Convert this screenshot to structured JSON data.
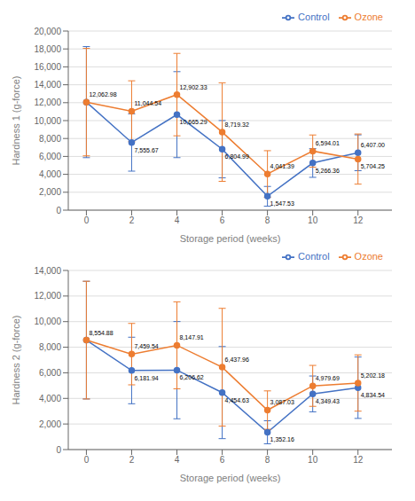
{
  "chart_data": [
    {
      "type": "line",
      "x": [
        0,
        2,
        4,
        6,
        8,
        10,
        12
      ],
      "xlim": [
        -0.8,
        13.5
      ],
      "xticks": [
        0,
        2,
        4,
        6,
        8,
        10,
        12
      ],
      "xlabel": "Storage period (weeks)",
      "ylabel": "Hardness 1 (g-force)",
      "ylim": [
        0,
        20000
      ],
      "yticks": [
        0,
        {
          "value": 2000,
          "label": "2,000"
        },
        {
          "value": 4000,
          "label": "4,000"
        },
        {
          "value": 6000,
          "label": "6,000"
        },
        {
          "value": 8000,
          "label": "8,000"
        },
        {
          "value": 10000,
          "label": "10,000"
        },
        {
          "value": 12000,
          "label": "12,000"
        },
        {
          "value": 14000,
          "label": "14,000"
        },
        {
          "value": 16000,
          "label": "16,000"
        },
        {
          "value": 18000,
          "label": "18,000"
        },
        {
          "value": 20000,
          "label": "20,000"
        }
      ],
      "grid": true,
      "legend": "upper right",
      "data_labels": true,
      "series": [
        {
          "name": "Control",
          "color": "#4472C4",
          "marker": "circle",
          "values": [
            12062.98,
            7555.67,
            10665.29,
            6804.99,
            1547.53,
            5266.36,
            6407.0
          ],
          "error": [
            6200,
            3200,
            4800,
            3200,
            1100,
            1600,
            2000
          ],
          "value_labels": [
            "12,062.98",
            "7,555.67",
            "10,665.29",
            "6,804.99",
            "1,547.53",
            "5,266.36",
            "6,407.00"
          ]
        },
        {
          "name": "Ozone",
          "color": "#ED7D31",
          "marker": "circle",
          "values": [
            12062.98,
            11044.54,
            12902.33,
            8719.32,
            4041.39,
            6594.01,
            5704.25
          ],
          "error": [
            6000,
            3400,
            4600,
            5500,
            2600,
            1800,
            2800
          ],
          "value_labels": [
            null,
            "11,044.54",
            "12,902.33",
            "8,719.32",
            "4,041.39",
            "6,594.01",
            "5,704.25"
          ]
        }
      ]
    },
    {
      "type": "line",
      "x": [
        0,
        2,
        4,
        6,
        8,
        10,
        12
      ],
      "xlim": [
        -0.8,
        13.5
      ],
      "xticks": [
        0,
        2,
        4,
        6,
        8,
        10,
        12
      ],
      "xlabel": "Storage period (weeks)",
      "ylabel": "Hardness 2 (g-force)",
      "ylim": [
        0,
        14000
      ],
      "yticks": [
        0,
        {
          "value": 2000,
          "label": "2,000"
        },
        {
          "value": 4000,
          "label": "4,000"
        },
        {
          "value": 6000,
          "label": "6,000"
        },
        {
          "value": 8000,
          "label": "8,000"
        },
        {
          "value": 10000,
          "label": "10,000"
        },
        {
          "value": 12000,
          "label": "12,000"
        },
        {
          "value": 14000,
          "label": "14,000"
        }
      ],
      "grid": true,
      "legend": "upper right",
      "data_labels": true,
      "series": [
        {
          "name": "Control",
          "color": "#4472C4",
          "marker": "circle",
          "values": [
            8554.88,
            6181.94,
            6206.62,
            4454.63,
            1352.16,
            4349.43,
            4834.54
          ],
          "error": [
            4600,
            2600,
            3800,
            3600,
            900,
            1400,
            2400
          ],
          "value_labels": [
            "8,554.88",
            "6,181.94",
            "6,206.62",
            "4,454.63",
            "1,352.16",
            "4,349.43",
            "4,834.54"
          ]
        },
        {
          "name": "Ozone",
          "color": "#ED7D31",
          "marker": "circle",
          "values": [
            8554.88,
            7459.54,
            8147.91,
            6437.96,
            3087.03,
            4979.69,
            5202.18
          ],
          "error": [
            4600,
            2400,
            3400,
            4600,
            1500,
            1600,
            2200
          ],
          "value_labels": [
            null,
            "7,459.54",
            "8,147.91",
            "6,437.96",
            "3,087.03",
            "4,979.69",
            "5,202.18"
          ]
        }
      ]
    }
  ]
}
